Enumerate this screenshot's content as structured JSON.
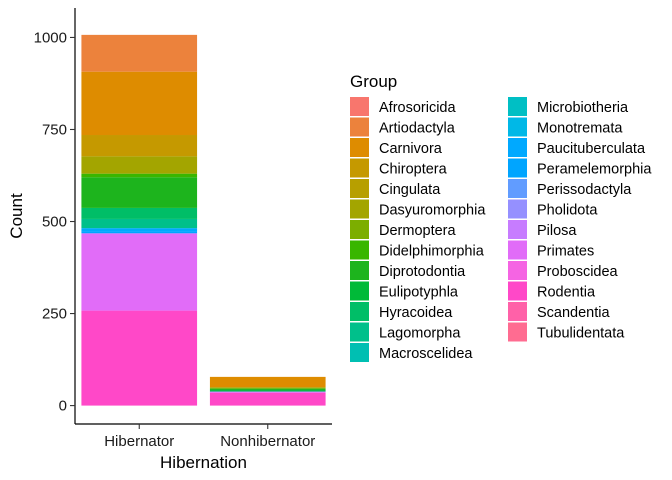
{
  "chart_data": {
    "type": "bar",
    "stacked": true,
    "xlabel": "Hibernation",
    "ylabel": "Count",
    "categories": [
      "Hibernator",
      "Nonhibernator"
    ],
    "ylim": [
      -50,
      1080
    ],
    "yticks": [
      0,
      250,
      500,
      750,
      1000
    ],
    "legend": {
      "title": "Group",
      "position": "right",
      "columns": 2
    },
    "series": [
      {
        "name": "Afrosoricida",
        "color": "#F8766D",
        "values": [
          0,
          0
        ]
      },
      {
        "name": "Artiodactyla",
        "color": "#EC823C",
        "values": [
          100,
          0
        ]
      },
      {
        "name": "Carnivora",
        "color": "#DE8C00",
        "values": [
          172,
          28
        ]
      },
      {
        "name": "Chiroptera",
        "color": "#C59900",
        "values": [
          58,
          0
        ]
      },
      {
        "name": "Cingulata",
        "color": "#B79F00",
        "values": [
          0,
          0
        ]
      },
      {
        "name": "Dasyuromorphia",
        "color": "#A3A500",
        "values": [
          47,
          3
        ]
      },
      {
        "name": "Dermoptera",
        "color": "#7CAE00",
        "values": [
          0,
          0
        ]
      },
      {
        "name": "Didelphimorphia",
        "color": "#39B600",
        "values": [
          10,
          2
        ]
      },
      {
        "name": "Diprotodontia",
        "color": "#1DB41D",
        "values": [
          83,
          4
        ]
      },
      {
        "name": "Eulipotyphla",
        "color": "#00BA38",
        "values": [
          0,
          0
        ]
      },
      {
        "name": "Hyracoidea",
        "color": "#00BE67",
        "values": [
          30,
          3
        ]
      },
      {
        "name": "Lagomorpha",
        "color": "#00C08B",
        "values": [
          25,
          0
        ]
      },
      {
        "name": "Macroscelidea",
        "color": "#00BFB2",
        "values": [
          0,
          0
        ]
      },
      {
        "name": "Microbiotheria",
        "color": "#00BFC4",
        "values": [
          0,
          0
        ]
      },
      {
        "name": "Monotremata",
        "color": "#00B8E7",
        "values": [
          0,
          0
        ]
      },
      {
        "name": "Paucituberculata",
        "color": "#00A9FF",
        "values": [
          8,
          0
        ]
      },
      {
        "name": "Peramelemorphia",
        "color": "#00A5FF",
        "values": [
          6,
          0
        ]
      },
      {
        "name": "Perissodactyla",
        "color": "#619CFF",
        "values": [
          0,
          0
        ]
      },
      {
        "name": "Pholidota",
        "color": "#9590FF",
        "values": [
          0,
          0
        ]
      },
      {
        "name": "Pilosa",
        "color": "#C77CFF",
        "values": [
          0,
          0
        ]
      },
      {
        "name": "Primates",
        "color": "#E16CF8",
        "values": [
          210,
          3
        ]
      },
      {
        "name": "Proboscidea",
        "color": "#F564E3",
        "values": [
          0,
          0
        ]
      },
      {
        "name": "Rodentia",
        "color": "#FF48C8",
        "values": [
          258,
          35
        ]
      },
      {
        "name": "Scandentia",
        "color": "#FF61A8",
        "values": [
          0,
          0
        ]
      },
      {
        "name": "Tubulidentata",
        "color": "#FF6C91",
        "values": [
          0,
          0
        ]
      }
    ]
  }
}
